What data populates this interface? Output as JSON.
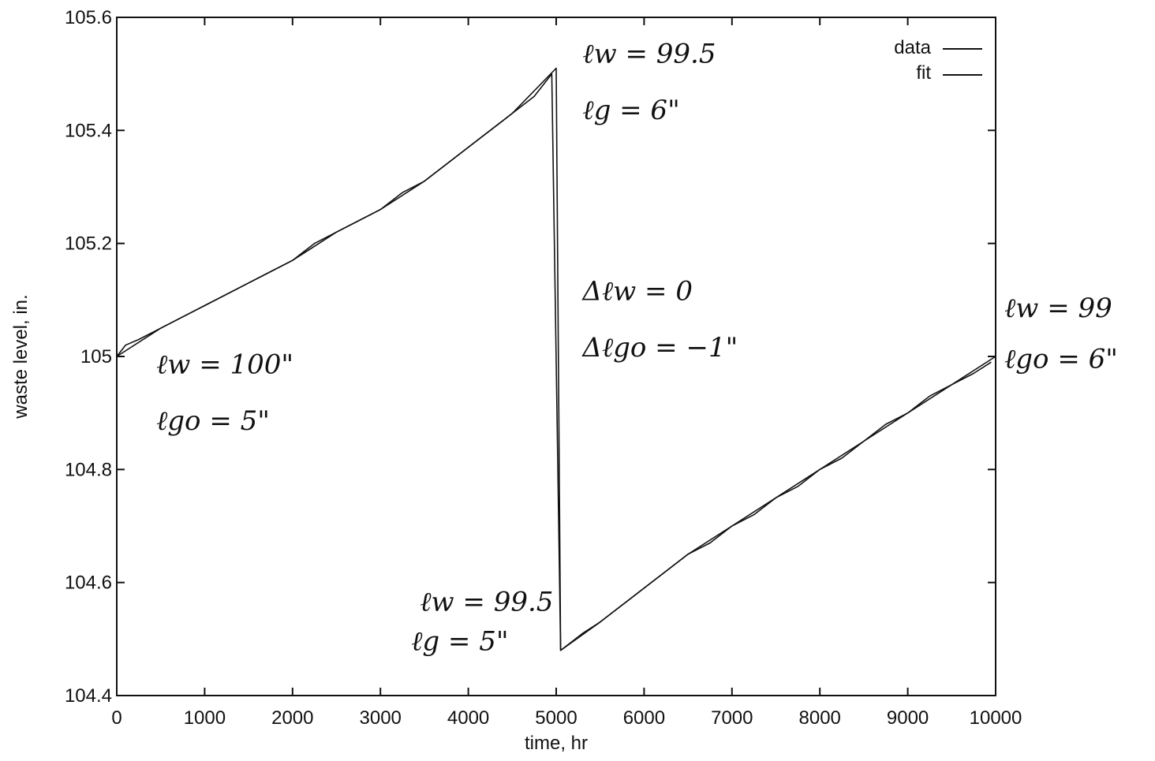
{
  "chart_data": {
    "type": "line",
    "title": "",
    "xlabel": "time, hr",
    "ylabel": "waste level, in.",
    "xlim": [
      0,
      10000
    ],
    "ylim": [
      104.4,
      105.6
    ],
    "xticks": [
      0,
      1000,
      2000,
      3000,
      4000,
      5000,
      6000,
      7000,
      8000,
      9000,
      10000
    ],
    "yticks": [
      104.4,
      104.6,
      104.8,
      105,
      105.2,
      105.4,
      105.6
    ],
    "xtick_labels": [
      "0",
      "1000",
      "2000",
      "3000",
      "4000",
      "5000",
      "6000",
      "7000",
      "8000",
      "9000",
      "10000"
    ],
    "ytick_labels": [
      "104.4",
      "104.6",
      "104.8",
      "105",
      "105.2",
      "105.4",
      "105.6"
    ],
    "grid": false,
    "legend": {
      "placement": "top-right",
      "entries": [
        "data",
        "fit"
      ]
    },
    "series": [
      {
        "name": "data",
        "x": [
          0,
          100,
          250,
          500,
          750,
          1000,
          1250,
          1500,
          1750,
          2000,
          2250,
          2500,
          2750,
          3000,
          3250,
          3500,
          3750,
          4000,
          4250,
          4500,
          4750,
          4950,
          5050,
          5300,
          5500,
          5750,
          6000,
          6250,
          6500,
          6750,
          7000,
          7250,
          7500,
          7750,
          8000,
          8250,
          8500,
          8750,
          9000,
          9250,
          9500,
          9750,
          9950
        ],
        "y": [
          105.0,
          105.02,
          105.03,
          105.05,
          105.07,
          105.09,
          105.11,
          105.13,
          105.15,
          105.17,
          105.2,
          105.22,
          105.24,
          105.26,
          105.29,
          105.31,
          105.34,
          105.37,
          105.4,
          105.43,
          105.46,
          105.5,
          104.48,
          104.51,
          104.53,
          104.56,
          104.59,
          104.62,
          104.65,
          104.67,
          104.7,
          104.72,
          104.75,
          104.77,
          104.8,
          104.82,
          104.85,
          104.88,
          104.9,
          104.93,
          104.95,
          104.97,
          104.99
        ]
      },
      {
        "name": "fit",
        "x": [
          0,
          500,
          1000,
          1500,
          2000,
          2500,
          3000,
          3500,
          4000,
          4500,
          5000,
          5050,
          5500,
          6000,
          6500,
          7000,
          7500,
          8000,
          8500,
          9000,
          9500,
          10000
        ],
        "y": [
          105.0,
          105.05,
          105.09,
          105.13,
          105.17,
          105.22,
          105.26,
          105.31,
          105.37,
          105.43,
          105.51,
          104.48,
          104.53,
          104.59,
          104.65,
          104.7,
          104.75,
          104.8,
          104.85,
          104.9,
          104.95,
          105.0
        ]
      }
    ],
    "annotations": [
      {
        "text": "ℓw = 99.5",
        "x": 5300,
        "y": 105.52
      },
      {
        "text": "ℓg = 6\"",
        "x": 5300,
        "y": 105.42
      },
      {
        "text": "Δℓw = 0",
        "x": 5300,
        "y": 105.1
      },
      {
        "text": "Δℓgo = −1\"",
        "x": 5300,
        "y": 105.0
      },
      {
        "text": "ℓw = 100\"",
        "x": 450,
        "y": 104.97
      },
      {
        "text": "ℓgo = 5\"",
        "x": 450,
        "y": 104.87
      },
      {
        "text": "ℓw = 99.5",
        "x": 3450,
        "y": 104.55
      },
      {
        "text": "ℓg = 5\"",
        "x": 3350,
        "y": 104.48
      },
      {
        "text": "ℓw = 99",
        "x": 10100,
        "y": 105.07
      },
      {
        "text": "ℓgo = 6\"",
        "x": 10100,
        "y": 104.98
      }
    ]
  }
}
